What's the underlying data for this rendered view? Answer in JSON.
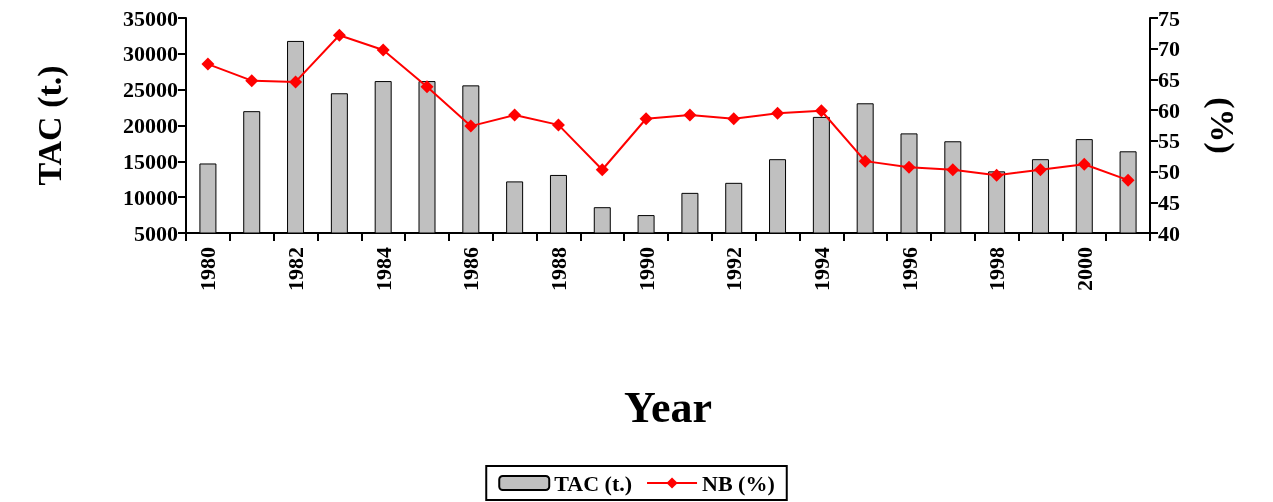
{
  "chart_data": {
    "type": "bar",
    "xlabel": "Year",
    "ylabel": "TAC (t.)",
    "y2label": "(%)",
    "categories": [
      "1980",
      null,
      "1982",
      null,
      "1984",
      null,
      "1986",
      null,
      "1988",
      null,
      "1990",
      null,
      "1992",
      null,
      "1994",
      null,
      "1996",
      null,
      "1998",
      null,
      "2000",
      null
    ],
    "series": [
      {
        "name": "TAC (t.)",
        "color": "#c0c0c0",
        "values": [
          14700,
          22000,
          31800,
          24500,
          26200,
          26200,
          25600,
          12200,
          13100,
          8600,
          7500,
          10600,
          12000,
          15300,
          21200,
          23100,
          18900,
          17800,
          13600,
          15300,
          18100,
          16400
        ]
      },
      {
        "name": "NB (%)",
        "type": "line",
        "axis": "y2",
        "color": "#ff0000",
        "marker": "diamond",
        "values": [
          67.5,
          64.8,
          64.6,
          72.2,
          69.8,
          63.8,
          57.4,
          59.2,
          57.6,
          50.3,
          58.6,
          59.2,
          58.6,
          59.5,
          59.9,
          51.7,
          50.7,
          50.3,
          49.4,
          50.3,
          51.2,
          48.6
        ]
      }
    ],
    "ylim": [
      5000,
      35000
    ],
    "yticks": [
      5000,
      10000,
      15000,
      20000,
      25000,
      30000,
      35000
    ],
    "y2lim": [
      40,
      75
    ],
    "y2ticks": [
      40,
      45,
      50,
      55,
      60,
      65,
      70,
      75
    ],
    "grid": false,
    "legend": "bottom"
  }
}
